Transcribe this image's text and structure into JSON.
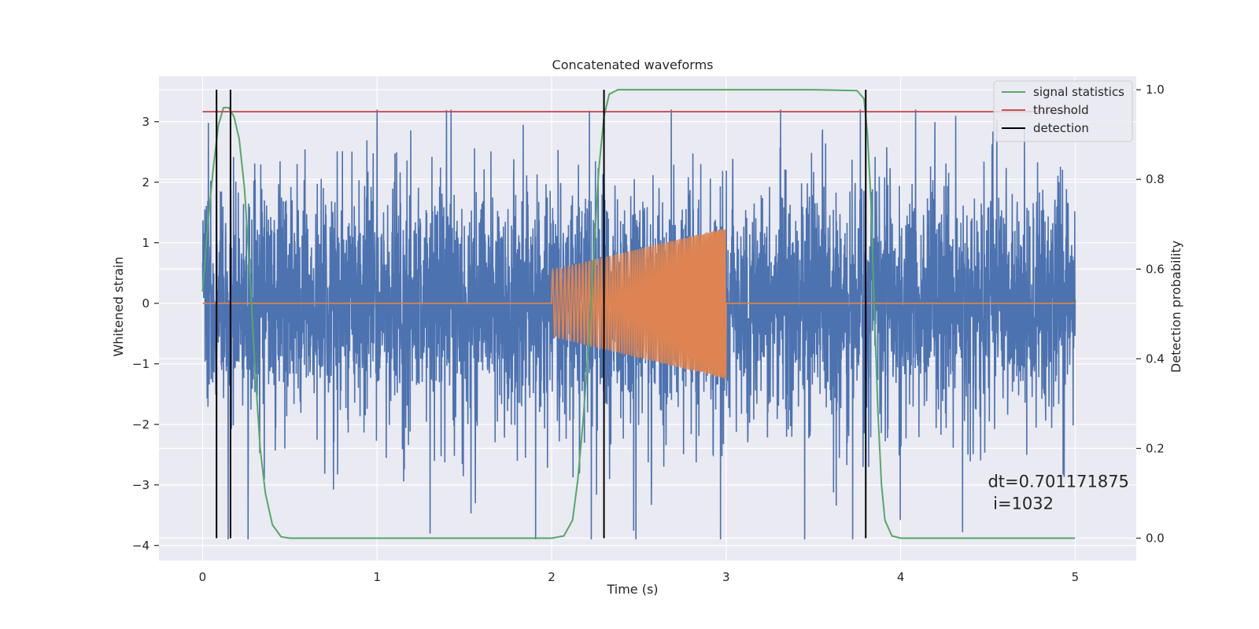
{
  "chart_data": {
    "type": "line",
    "title": "Concatenated waveforms",
    "xlabel": "Time (s)",
    "ylabel_left": "Whitened strain",
    "ylabel_right": "Detection probability",
    "xlim": [
      -0.25,
      5.35
    ],
    "ylim_left": [
      -4.25,
      3.75
    ],
    "ylim_right": [
      -0.05,
      1.03
    ],
    "x_ticks": [
      0,
      1,
      2,
      3,
      4,
      5
    ],
    "x_tick_labels": [
      "0",
      "1",
      "2",
      "3",
      "4",
      "5"
    ],
    "y_left_ticks": [
      3,
      2,
      1,
      0,
      -1,
      -2,
      -3,
      -4
    ],
    "y_left_tick_labels": [
      "3",
      "2",
      "1",
      "0",
      "−1",
      "−2",
      "−3",
      "−4"
    ],
    "y_right_ticks": [
      1.0,
      0.8,
      0.6,
      0.4,
      0.2,
      0.0
    ],
    "y_right_tick_labels": [
      "1.0",
      "0.8",
      "0.6",
      "0.4",
      "0.2",
      "0.0"
    ],
    "grid": true,
    "legend_position": "top-right",
    "colors": {
      "background": "#eaeaf2",
      "grid": "#ffffff",
      "strain": "#4c72b0",
      "injection": "#dd8452",
      "signal_statistics": "#55a868",
      "threshold": "#c44e52",
      "detection": "#000000"
    },
    "series": [
      {
        "name": "",
        "axis": "left",
        "description_kind": "noise",
        "x_range": [
          0,
          5
        ],
        "amplitude_typical": 1.0,
        "amplitude_peak": 3.2,
        "color_key": "strain"
      },
      {
        "name": "",
        "axis": "left",
        "description_kind": "chirp",
        "x_range": [
          2.0,
          3.0
        ],
        "amplitude_start": 0.55,
        "amplitude_end": 1.25,
        "baseline": 0,
        "color_key": "injection"
      },
      {
        "name": "signal statistics",
        "axis": "right",
        "color_key": "signal_statistics",
        "points": [
          [
            0.0,
            0.55
          ],
          [
            0.03,
            0.7
          ],
          [
            0.06,
            0.82
          ],
          [
            0.09,
            0.92
          ],
          [
            0.12,
            0.96
          ],
          [
            0.15,
            0.96
          ],
          [
            0.18,
            0.94
          ],
          [
            0.21,
            0.89
          ],
          [
            0.24,
            0.78
          ],
          [
            0.27,
            0.6
          ],
          [
            0.3,
            0.38
          ],
          [
            0.33,
            0.2
          ],
          [
            0.36,
            0.1
          ],
          [
            0.4,
            0.03
          ],
          [
            0.45,
            0.003
          ],
          [
            0.5,
            0.0
          ],
          [
            1.0,
            0.0
          ],
          [
            2.0,
            0.0
          ],
          [
            2.07,
            0.005
          ],
          [
            2.12,
            0.04
          ],
          [
            2.15,
            0.13
          ],
          [
            2.18,
            0.26
          ],
          [
            2.21,
            0.42
          ],
          [
            2.24,
            0.62
          ],
          [
            2.27,
            0.82
          ],
          [
            2.3,
            0.94
          ],
          [
            2.33,
            0.99
          ],
          [
            2.38,
            1.0
          ],
          [
            3.5,
            1.0
          ],
          [
            3.75,
            0.998
          ],
          [
            3.79,
            0.98
          ],
          [
            3.81,
            0.9
          ],
          [
            3.83,
            0.75
          ],
          [
            3.85,
            0.5
          ],
          [
            3.87,
            0.28
          ],
          [
            3.89,
            0.12
          ],
          [
            3.91,
            0.04
          ],
          [
            3.95,
            0.005
          ],
          [
            4.0,
            0.0
          ],
          [
            5.0,
            0.0
          ]
        ]
      },
      {
        "name": "threshold",
        "axis": "right",
        "color_key": "threshold",
        "points": [
          [
            0.0,
            0.951
          ],
          [
            5.0,
            0.951
          ]
        ]
      },
      {
        "name": "detection",
        "axis": "right",
        "color_key": "detection",
        "vlines_x": [
          0.08,
          0.16,
          2.3,
          3.8
        ],
        "vlines_y_range": [
          0.0,
          1.0
        ]
      }
    ],
    "legend": [
      "signal statistics",
      "threshold",
      "detection"
    ],
    "annotation": {
      "line1": "dt=0.701171875",
      "line2": " i=1032",
      "x": 4.5,
      "y_right": 0.1
    }
  }
}
